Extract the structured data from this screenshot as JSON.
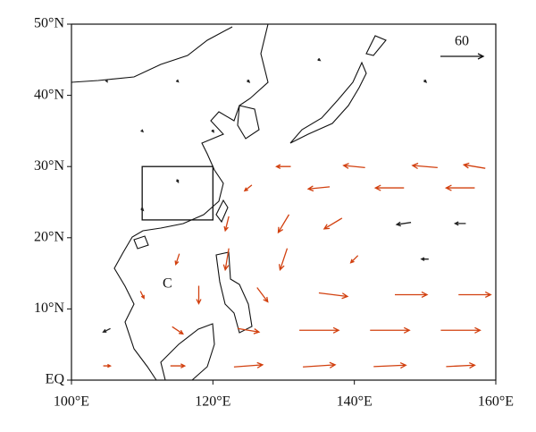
{
  "chart_data": {
    "type": "vector_map",
    "xlim": [
      100,
      160
    ],
    "ylim": [
      0,
      50
    ],
    "xticks": [
      {
        "value": 100,
        "label": "100°E"
      },
      {
        "value": 120,
        "label": "120°E"
      },
      {
        "value": 140,
        "label": "140°E"
      },
      {
        "value": 160,
        "label": "160°E"
      }
    ],
    "yticks": [
      {
        "value": 0,
        "label": "EQ"
      },
      {
        "value": 10,
        "label": "10°N"
      },
      {
        "value": 20,
        "label": "20°N"
      },
      {
        "value": 30,
        "label": "30°N"
      },
      {
        "value": 40,
        "label": "40°N"
      },
      {
        "value": 50,
        "label": "50°N"
      }
    ],
    "reference_vector": {
      "value": 60,
      "label": "60"
    },
    "box": {
      "lon": [
        110,
        120
      ],
      "lat": [
        22.5,
        30
      ]
    },
    "annotation": "C",
    "sig_color": "#d2400f",
    "insig_color": "#222222",
    "vectors": [
      {
        "lon": 130,
        "lat": 30,
        "u": -20,
        "v": 0,
        "sig": true
      },
      {
        "lon": 140,
        "lat": 30,
        "u": -30,
        "v": 3,
        "sig": true
      },
      {
        "lon": 150,
        "lat": 30,
        "u": -35,
        "v": 3,
        "sig": true
      },
      {
        "lon": 157,
        "lat": 30,
        "u": -30,
        "v": 5,
        "sig": true
      },
      {
        "lon": 125,
        "lat": 27,
        "u": -10,
        "v": -8,
        "sig": true
      },
      {
        "lon": 135,
        "lat": 27,
        "u": -30,
        "v": -3,
        "sig": true
      },
      {
        "lon": 145,
        "lat": 27,
        "u": -40,
        "v": 0,
        "sig": true
      },
      {
        "lon": 155,
        "lat": 27,
        "u": -40,
        "v": 0,
        "sig": true
      },
      {
        "lon": 122,
        "lat": 22,
        "u": -5,
        "v": -20,
        "sig": true
      },
      {
        "lon": 130,
        "lat": 22,
        "u": -15,
        "v": -25,
        "sig": true
      },
      {
        "lon": 137,
        "lat": 22,
        "u": -25,
        "v": -15,
        "sig": true
      },
      {
        "lon": 147,
        "lat": 22,
        "u": -20,
        "v": -3,
        "sig": false
      },
      {
        "lon": 155,
        "lat": 22,
        "u": -15,
        "v": 0,
        "sig": false
      },
      {
        "lon": 115,
        "lat": 17,
        "u": -5,
        "v": -15,
        "sig": true
      },
      {
        "lon": 122,
        "lat": 17,
        "u": -5,
        "v": -30,
        "sig": true
      },
      {
        "lon": 130,
        "lat": 17,
        "u": -10,
        "v": -30,
        "sig": true
      },
      {
        "lon": 140,
        "lat": 17,
        "u": -10,
        "v": -10,
        "sig": true
      },
      {
        "lon": 150,
        "lat": 17,
        "u": -10,
        "v": 0,
        "sig": false
      },
      {
        "lon": 110,
        "lat": 12,
        "u": 5,
        "v": -10,
        "sig": true
      },
      {
        "lon": 118,
        "lat": 12,
        "u": 0,
        "v": -25,
        "sig": true
      },
      {
        "lon": 127,
        "lat": 12,
        "u": 15,
        "v": -20,
        "sig": true
      },
      {
        "lon": 137,
        "lat": 12,
        "u": 40,
        "v": -5,
        "sig": true
      },
      {
        "lon": 148,
        "lat": 12,
        "u": 45,
        "v": 0,
        "sig": true
      },
      {
        "lon": 157,
        "lat": 12,
        "u": 45,
        "v": 0,
        "sig": true
      },
      {
        "lon": 105,
        "lat": 7,
        "u": -10,
        "v": -5,
        "sig": false
      },
      {
        "lon": 115,
        "lat": 7,
        "u": 15,
        "v": -10,
        "sig": true
      },
      {
        "lon": 125,
        "lat": 7,
        "u": 30,
        "v": -5,
        "sig": true
      },
      {
        "lon": 135,
        "lat": 7,
        "u": 55,
        "v": 0,
        "sig": true
      },
      {
        "lon": 145,
        "lat": 7,
        "u": 55,
        "v": 0,
        "sig": true
      },
      {
        "lon": 155,
        "lat": 7,
        "u": 55,
        "v": 0,
        "sig": true
      },
      {
        "lon": 105,
        "lat": 2,
        "u": 10,
        "v": 0,
        "sig": true
      },
      {
        "lon": 115,
        "lat": 2,
        "u": 20,
        "v": 0,
        "sig": true
      },
      {
        "lon": 125,
        "lat": 2,
        "u": 40,
        "v": 3,
        "sig": true
      },
      {
        "lon": 135,
        "lat": 2,
        "u": 45,
        "v": 3,
        "sig": true
      },
      {
        "lon": 145,
        "lat": 2,
        "u": 45,
        "v": 2,
        "sig": true
      },
      {
        "lon": 155,
        "lat": 2,
        "u": 40,
        "v": 2,
        "sig": true
      },
      {
        "lon": 105,
        "lat": 42,
        "u": 1,
        "v": -2,
        "sig": false
      },
      {
        "lon": 115,
        "lat": 42,
        "u": 2,
        "v": -2,
        "sig": false
      },
      {
        "lon": 125,
        "lat": 42,
        "u": 3,
        "v": -3,
        "sig": false
      },
      {
        "lon": 135,
        "lat": 45,
        "u": 3,
        "v": -2,
        "sig": false
      },
      {
        "lon": 150,
        "lat": 42,
        "u": 3,
        "v": -3,
        "sig": false
      },
      {
        "lon": 110,
        "lat": 35,
        "u": 2,
        "v": -2,
        "sig": false
      },
      {
        "lon": 120,
        "lat": 35,
        "u": 2,
        "v": -3,
        "sig": false
      },
      {
        "lon": 115,
        "lat": 28,
        "u": 2,
        "v": -4,
        "sig": false
      },
      {
        "lon": 110,
        "lat": 24,
        "u": 3,
        "v": -3,
        "sig": false
      }
    ]
  }
}
